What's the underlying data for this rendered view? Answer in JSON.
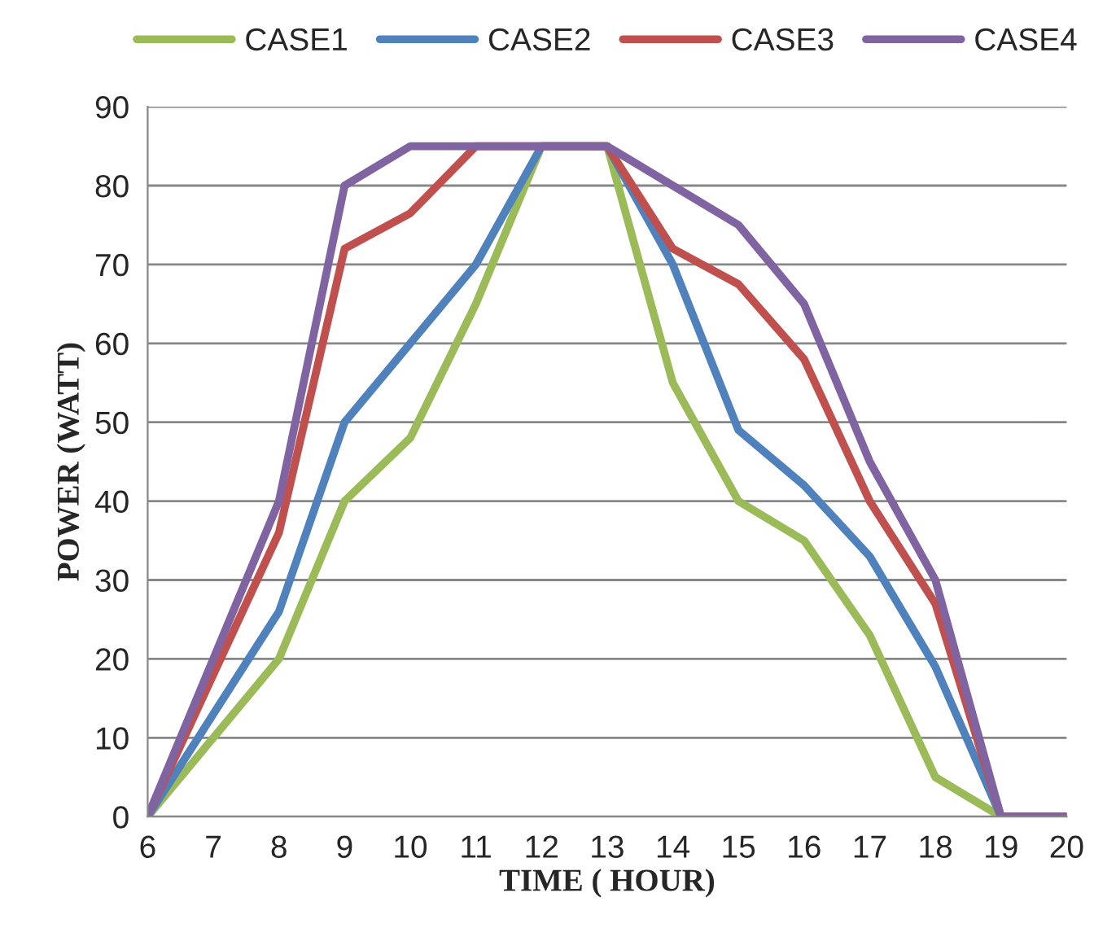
{
  "chart_data": {
    "type": "line",
    "xlabel": "TIME ( HOUR)",
    "ylabel": "POWER (WATT)",
    "x": [
      6,
      7,
      8,
      9,
      10,
      11,
      12,
      13,
      14,
      15,
      16,
      17,
      18,
      19,
      20
    ],
    "series": [
      {
        "name": "CASE1",
        "color": "#9bbb59",
        "values": [
          0,
          10,
          20,
          40,
          48,
          65,
          85,
          85,
          55,
          40,
          35,
          23,
          5,
          0,
          0
        ]
      },
      {
        "name": "CASE2",
        "color": "#4f81bd",
        "values": [
          0,
          13,
          26,
          50,
          60,
          70,
          85,
          85,
          70,
          49,
          42,
          33,
          19,
          0,
          0
        ]
      },
      {
        "name": "CASE3",
        "color": "#c0504d",
        "values": [
          0,
          18,
          36,
          72,
          76.5,
          85,
          85,
          85,
          72,
          67.5,
          58,
          40,
          27,
          0,
          0
        ]
      },
      {
        "name": "CASE4",
        "color": "#8064a2",
        "values": [
          0,
          20,
          40,
          80,
          85,
          85,
          85,
          85,
          80,
          75,
          65,
          45,
          30,
          0,
          0
        ]
      }
    ],
    "xlim": [
      6,
      20
    ],
    "xticks": [
      6,
      7,
      8,
      9,
      10,
      11,
      12,
      13,
      14,
      15,
      16,
      17,
      18,
      19,
      20
    ],
    "ylim": [
      0,
      90
    ],
    "yticks": [
      0,
      10,
      20,
      30,
      40,
      50,
      60,
      70,
      80,
      90
    ],
    "grid": "y",
    "legend": "top",
    "marker": "none",
    "line_style": "solid"
  }
}
